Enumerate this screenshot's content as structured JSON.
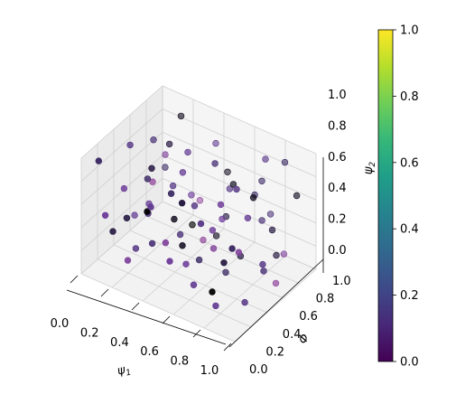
{
  "chart_data": {
    "type": "scatter",
    "projection": "3d",
    "title": "",
    "axes": {
      "x": {
        "label": "ψ1",
        "label_base": "ψ",
        "label_sub": "1",
        "range": [
          0,
          1
        ],
        "ticks": [
          "0.0",
          "0.2",
          "0.4",
          "0.6",
          "0.8",
          "1.0"
        ]
      },
      "y": {
        "label": "Φ",
        "range": [
          0,
          1
        ],
        "ticks": [
          "0.0",
          "0.2",
          "0.4",
          "0.6",
          "0.8",
          "1.0"
        ]
      },
      "z": {
        "label": "ψ2",
        "label_base": "ψ",
        "label_sub": "2",
        "range": [
          0,
          1
        ],
        "ticks": [
          "0.0",
          "0.2",
          "0.4",
          "0.6",
          "0.8",
          "1.0"
        ]
      }
    },
    "grid": true,
    "colorbar": {
      "colormap": "viridis",
      "range": [
        0,
        1
      ],
      "ticks": [
        "0.0",
        "0.2",
        "0.4",
        "0.6",
        "0.8",
        "1.0"
      ],
      "stops": [
        "#440154",
        "#482878",
        "#3e4a89",
        "#31688e",
        "#26828e",
        "#1f9e89",
        "#35b779",
        "#6ece58",
        "#b5de2b",
        "#fde725"
      ]
    },
    "point_color_stops": [
      "#000000",
      "#3d2a6b",
      "#6a3d9a",
      "#a44fa0"
    ],
    "points": [
      {
        "x": 0.05,
        "y": 0.12,
        "z": 0.93,
        "c": 0.3
      },
      {
        "x": 0.08,
        "y": 0.45,
        "z": 0.88,
        "c": 0.5
      },
      {
        "x": 0.12,
        "y": 0.3,
        "z": 0.62,
        "c": 0.7
      },
      {
        "x": 0.1,
        "y": 0.7,
        "z": 0.78,
        "c": 0.4
      },
      {
        "x": 0.18,
        "y": 0.22,
        "z": 0.45,
        "c": 0.2
      },
      {
        "x": 0.15,
        "y": 0.55,
        "z": 0.35,
        "c": 0.6
      },
      {
        "x": 0.2,
        "y": 0.85,
        "z": 0.95,
        "c": 0.1
      },
      {
        "x": 0.25,
        "y": 0.1,
        "z": 0.2,
        "c": 0.8
      },
      {
        "x": 0.22,
        "y": 0.4,
        "z": 0.7,
        "c": 0.3
      },
      {
        "x": 0.28,
        "y": 0.6,
        "z": 0.55,
        "c": 0.5
      },
      {
        "x": 0.3,
        "y": 0.3,
        "z": 0.9,
        "c": 0.2
      },
      {
        "x": 0.32,
        "y": 0.75,
        "z": 0.4,
        "c": 0.7
      },
      {
        "x": 0.35,
        "y": 0.15,
        "z": 0.65,
        "c": 0.0
      },
      {
        "x": 0.38,
        "y": 0.5,
        "z": 0.25,
        "c": 0.4
      },
      {
        "x": 0.4,
        "y": 0.9,
        "z": 0.8,
        "c": 0.6
      },
      {
        "x": 0.42,
        "y": 0.35,
        "z": 0.5,
        "c": 0.1
      },
      {
        "x": 0.45,
        "y": 0.65,
        "z": 0.15,
        "c": 0.9
      },
      {
        "x": 0.48,
        "y": 0.2,
        "z": 0.85,
        "c": 0.3
      },
      {
        "x": 0.5,
        "y": 0.45,
        "z": 0.6,
        "c": 0.5
      },
      {
        "x": 0.52,
        "y": 0.8,
        "z": 0.3,
        "c": 0.2
      },
      {
        "x": 0.55,
        "y": 0.05,
        "z": 0.4,
        "c": 0.7
      },
      {
        "x": 0.58,
        "y": 0.55,
        "z": 0.95,
        "c": 0.4
      },
      {
        "x": 0.6,
        "y": 0.25,
        "z": 0.1,
        "c": 0.6
      },
      {
        "x": 0.62,
        "y": 0.7,
        "z": 0.7,
        "c": 0.1
      },
      {
        "x": 0.65,
        "y": 0.4,
        "z": 0.35,
        "c": 0.8
      },
      {
        "x": 0.68,
        "y": 0.85,
        "z": 0.55,
        "c": 0.3
      },
      {
        "x": 0.7,
        "y": 0.15,
        "z": 0.75,
        "c": 0.5
      },
      {
        "x": 0.72,
        "y": 0.6,
        "z": 0.2,
        "c": 0.2
      },
      {
        "x": 0.75,
        "y": 0.3,
        "z": 0.85,
        "c": 0.7
      },
      {
        "x": 0.78,
        "y": 0.75,
        "z": 0.45,
        "c": 0.4
      },
      {
        "x": 0.8,
        "y": 0.1,
        "z": 0.25,
        "c": 0.0
      },
      {
        "x": 0.82,
        "y": 0.5,
        "z": 0.65,
        "c": 0.6
      },
      {
        "x": 0.85,
        "y": 0.9,
        "z": 0.9,
        "c": 0.3
      },
      {
        "x": 0.88,
        "y": 0.35,
        "z": 0.05,
        "c": 0.5
      },
      {
        "x": 0.9,
        "y": 0.65,
        "z": 0.5,
        "c": 0.2
      },
      {
        "x": 0.92,
        "y": 0.2,
        "z": 0.6,
        "c": 0.8
      },
      {
        "x": 0.95,
        "y": 0.45,
        "z": 0.3,
        "c": 0.4
      },
      {
        "x": 0.98,
        "y": 0.8,
        "z": 0.75,
        "c": 0.1
      },
      {
        "x": 0.03,
        "y": 0.6,
        "z": 0.15,
        "c": 0.6
      },
      {
        "x": 0.07,
        "y": 0.9,
        "z": 0.4,
        "c": 0.3
      },
      {
        "x": 0.13,
        "y": 0.05,
        "z": 0.55,
        "c": 0.7
      },
      {
        "x": 0.17,
        "y": 0.35,
        "z": 0.1,
        "c": 0.5
      },
      {
        "x": 0.23,
        "y": 0.65,
        "z": 0.85,
        "c": 0.2
      },
      {
        "x": 0.27,
        "y": 0.95,
        "z": 0.2,
        "c": 0.9
      },
      {
        "x": 0.33,
        "y": 0.25,
        "z": 0.3,
        "c": 0.4
      },
      {
        "x": 0.37,
        "y": 0.55,
        "z": 0.75,
        "c": 0.6
      },
      {
        "x": 0.43,
        "y": 0.85,
        "z": 0.05,
        "c": 0.1
      },
      {
        "x": 0.47,
        "y": 0.15,
        "z": 0.45,
        "c": 0.8
      },
      {
        "x": 0.53,
        "y": 0.45,
        "z": 0.15,
        "c": 0.3
      },
      {
        "x": 0.57,
        "y": 0.75,
        "z": 0.6,
        "c": 0.5
      },
      {
        "x": 0.63,
        "y": 0.05,
        "z": 0.95,
        "c": 0.2
      },
      {
        "x": 0.67,
        "y": 0.35,
        "z": 0.55,
        "c": 0.7
      },
      {
        "x": 0.73,
        "y": 0.95,
        "z": 0.35,
        "c": 0.4
      },
      {
        "x": 0.77,
        "y": 0.2,
        "z": 0.05,
        "c": 0.6
      },
      {
        "x": 0.83,
        "y": 0.55,
        "z": 0.8,
        "c": 0.1
      },
      {
        "x": 0.87,
        "y": 0.85,
        "z": 0.15,
        "c": 0.8
      },
      {
        "x": 0.93,
        "y": 0.1,
        "z": 0.7,
        "c": 0.3
      },
      {
        "x": 0.97,
        "y": 0.4,
        "z": 0.4,
        "c": 0.5
      },
      {
        "x": 0.1,
        "y": 0.2,
        "z": 0.3,
        "c": 0.2
      },
      {
        "x": 0.2,
        "y": 0.5,
        "z": 0.6,
        "c": 0.9
      },
      {
        "x": 0.3,
        "y": 0.8,
        "z": 0.1,
        "c": 0.0
      },
      {
        "x": 0.4,
        "y": 0.1,
        "z": 0.75,
        "c": 0.6
      },
      {
        "x": 0.5,
        "y": 0.3,
        "z": 0.35,
        "c": 0.1
      },
      {
        "x": 0.6,
        "y": 0.6,
        "z": 0.45,
        "c": 0.7
      },
      {
        "x": 0.7,
        "y": 0.9,
        "z": 0.65,
        "c": 0.3
      },
      {
        "x": 0.8,
        "y": 0.4,
        "z": 0.95,
        "c": 0.5
      },
      {
        "x": 0.9,
        "y": 0.7,
        "z": 0.25,
        "c": 0.2
      },
      {
        "x": 0.15,
        "y": 0.75,
        "z": 0.65,
        "c": 0.8
      },
      {
        "x": 0.25,
        "y": 0.35,
        "z": 0.45,
        "c": 0.4
      },
      {
        "x": 0.35,
        "y": 0.65,
        "z": 0.85,
        "c": 0.6
      },
      {
        "x": 0.45,
        "y": 0.95,
        "z": 0.55,
        "c": 0.1
      },
      {
        "x": 0.55,
        "y": 0.25,
        "z": 0.25,
        "c": 0.7
      },
      {
        "x": 0.65,
        "y": 0.55,
        "z": 0.05,
        "c": 0.3
      },
      {
        "x": 0.75,
        "y": 0.85,
        "z": 0.9,
        "c": 0.5
      },
      {
        "x": 0.85,
        "y": 0.15,
        "z": 0.5,
        "c": 0.2
      },
      {
        "x": 0.95,
        "y": 0.6,
        "z": 0.1,
        "c": 0.9
      }
    ]
  }
}
